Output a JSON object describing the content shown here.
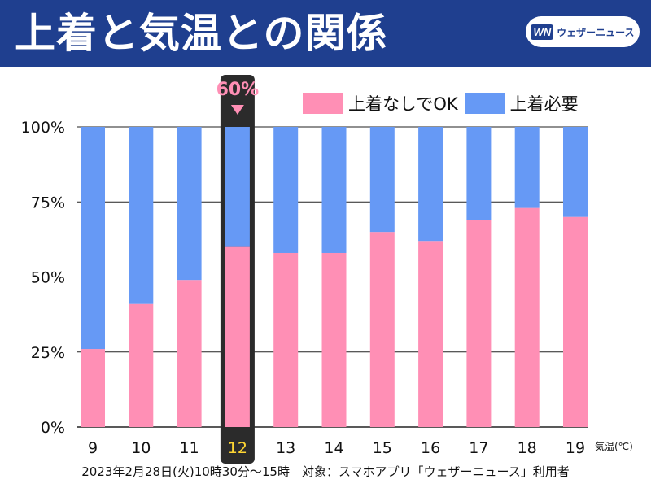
{
  "header": {
    "title": "上着と気温との関係",
    "logo_mark": "WN",
    "logo_text": "ウェザーニュース"
  },
  "colors": {
    "header_bg": "#1f3f8f",
    "no_jacket": "#ff8fb5",
    "jacket": "#6699f5",
    "highlight_box": "#2b2b2b",
    "highlight_text": "#ffd633",
    "callout_text": "#ff8fb5"
  },
  "chart_data": {
    "type": "bar",
    "stacked": true,
    "title": "上着と気温との関係",
    "xlabel": "気温(℃)",
    "ylabel": "",
    "ylim": [
      0,
      100
    ],
    "yticks": [
      "0%",
      "25%",
      "50%",
      "75%",
      "100%"
    ],
    "categories": [
      "9",
      "10",
      "11",
      "12",
      "13",
      "14",
      "15",
      "16",
      "17",
      "18",
      "19"
    ],
    "series": [
      {
        "name": "上着なしでOK",
        "values": [
          26,
          41,
          49,
          60,
          58,
          58,
          65,
          62,
          69,
          73,
          70
        ]
      },
      {
        "name": "上着必要",
        "values": [
          74,
          59,
          51,
          40,
          42,
          42,
          35,
          38,
          31,
          27,
          30
        ]
      }
    ],
    "highlight": {
      "category": "12",
      "label": "60%"
    },
    "legend": "top-right",
    "grid": true
  },
  "footer": {
    "note": "2023年2月28日(火)10時30分〜15時　対象：スマホアプリ「ウェザーニュース」利用者"
  }
}
